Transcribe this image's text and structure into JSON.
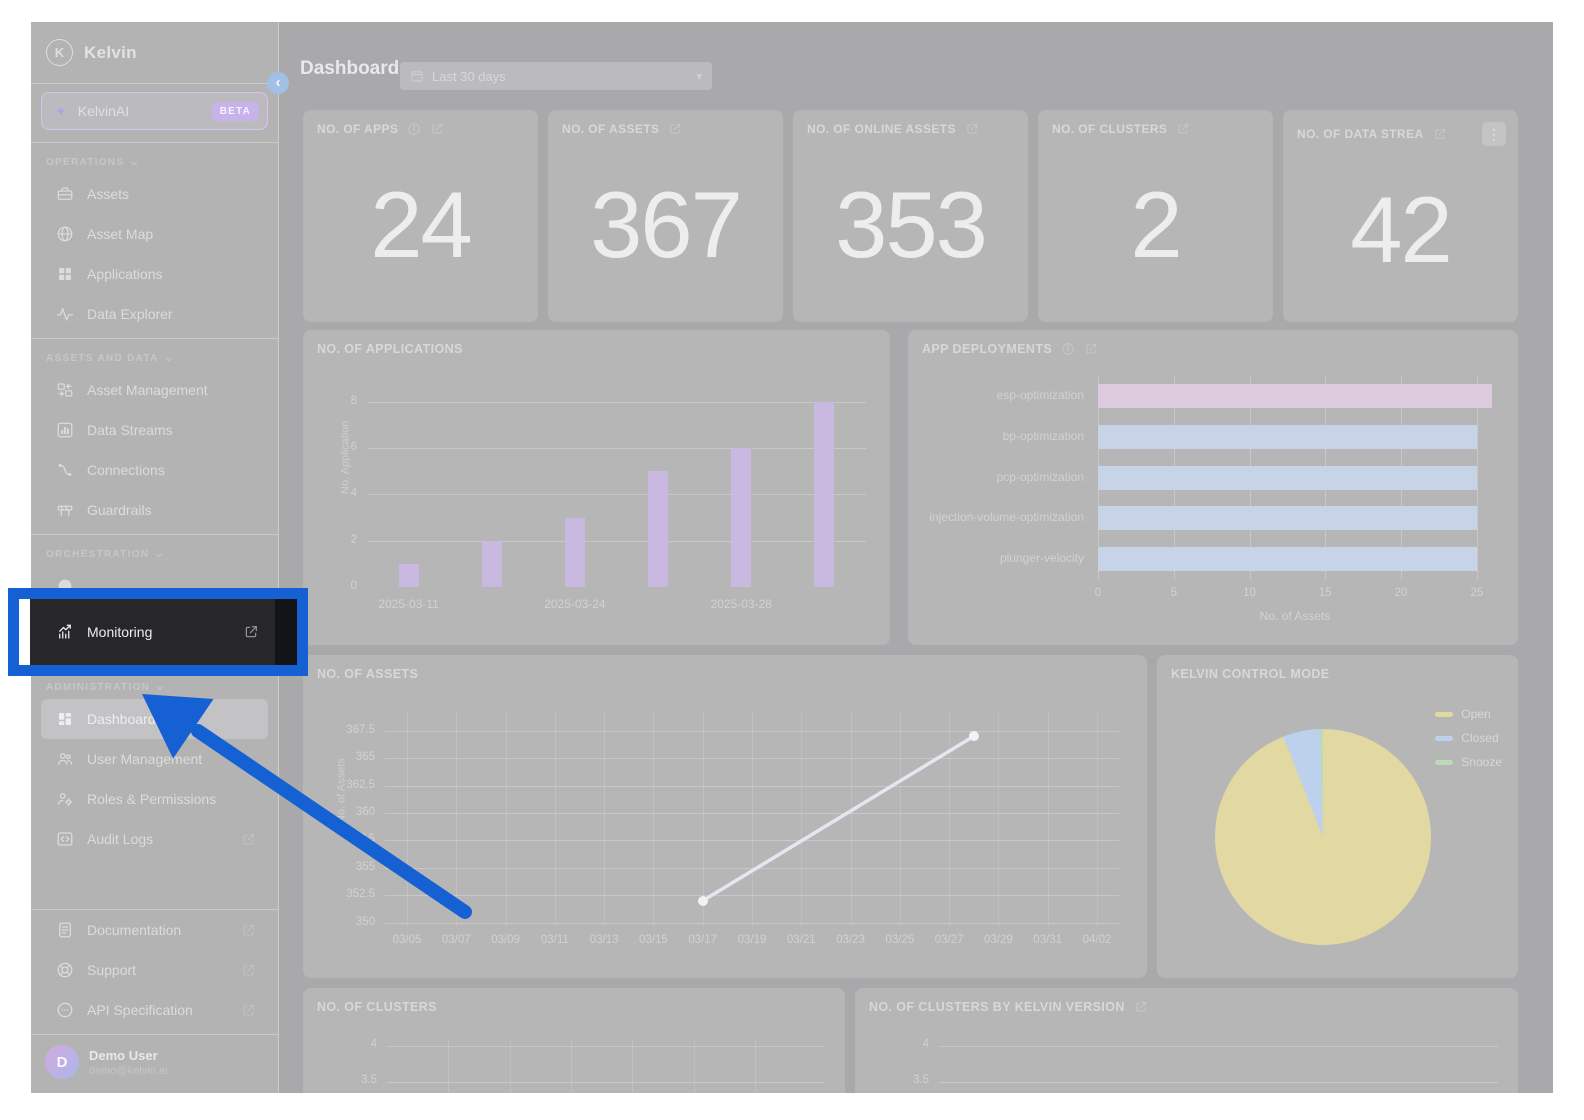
{
  "annotation": {
    "color": "#1560d2",
    "highlight": {
      "label": "Monitoring"
    }
  },
  "sidebar": {
    "logo_text": "Kelvin",
    "kelvinai": {
      "label": "KelvinAI",
      "badge": "BETA"
    },
    "sections": [
      {
        "label": "OPERATIONS",
        "items": [
          {
            "label": "Assets",
            "icon": "assets"
          },
          {
            "label": "Asset Map",
            "icon": "asset-map"
          },
          {
            "label": "Applications",
            "icon": "applications"
          },
          {
            "label": "Data Explorer",
            "icon": "data-explorer"
          }
        ]
      },
      {
        "label": "ASSETS AND DATA",
        "items": [
          {
            "label": "Asset Management",
            "icon": "asset-management"
          },
          {
            "label": "Data Streams",
            "icon": "data-streams"
          },
          {
            "label": "Connections",
            "icon": "connections"
          },
          {
            "label": "Guardrails",
            "icon": "guardrails"
          }
        ]
      },
      {
        "label": "ORCHESTRATION",
        "items": [
          {
            "label": "",
            "icon": "circle",
            "hidden_by_annotation": true
          }
        ]
      },
      {
        "label": "ADMINISTRATION",
        "items": [
          {
            "label": "Dashboard",
            "icon": "dashboard",
            "active": true
          },
          {
            "label": "User Management",
            "icon": "user-management"
          },
          {
            "label": "Roles & Permissions",
            "icon": "roles-permissions"
          },
          {
            "label": "Audit Logs",
            "icon": "audit-logs",
            "external": true
          }
        ]
      }
    ],
    "footer_items": [
      {
        "label": "Documentation",
        "icon": "documentation",
        "external": true
      },
      {
        "label": "Support",
        "icon": "support",
        "external": true
      },
      {
        "label": "API Specification",
        "icon": "api-spec",
        "external": true
      }
    ],
    "user": {
      "name": "Demo User",
      "email": "demo@kelvin.ai",
      "initial": "D"
    }
  },
  "header": {
    "title": "Dashboard",
    "date_range": "Last 30 days"
  },
  "stat_cards": [
    {
      "title": "NO. OF APPS",
      "value": "24",
      "info": true,
      "external": true
    },
    {
      "title": "NO. OF ASSETS",
      "value": "367",
      "external": true
    },
    {
      "title": "NO. OF ONLINE ASSETS",
      "value": "353",
      "external": true
    },
    {
      "title": "NO. OF CLUSTERS",
      "value": "2",
      "external": true
    },
    {
      "title": "NO. OF DATA STREA",
      "value": "42",
      "external": true,
      "menu": true
    }
  ],
  "chart_data": [
    {
      "id": "applications",
      "type": "bar",
      "title": "NO. OF APPLICATIONS",
      "ylabel": "No. Application",
      "yticks": [
        0,
        2,
        4,
        6,
        8
      ],
      "ylim": [
        0,
        8.6
      ],
      "values": [
        1,
        2,
        3,
        5,
        6,
        8
      ],
      "x_labels": [
        {
          "index": 0,
          "label": "2025-03-11"
        },
        {
          "index": 2,
          "label": "2025-03-24"
        },
        {
          "index": 4,
          "label": "2025-03-28"
        }
      ],
      "bar_color": "#c9b8e0",
      "grid": true
    },
    {
      "id": "deployments",
      "type": "hbar",
      "title": "APP DEPLOYMENTS",
      "info": true,
      "external": true,
      "categories": [
        "esp-optimization",
        "bp-optimization",
        "pcp-optimization",
        "injection-volume-optimization",
        "plunger-velocity"
      ],
      "values": [
        26,
        25,
        25,
        25,
        25
      ],
      "colors": [
        "#dccadd",
        "#c7d3e6",
        "#c7d3e6",
        "#c7d3e6",
        "#c7d3e6"
      ],
      "xticks": [
        0,
        5,
        10,
        15,
        20,
        25
      ],
      "xlim": [
        0,
        26
      ],
      "xlabel": "No. of Assets",
      "grid": true
    },
    {
      "id": "assets-trend",
      "type": "line",
      "title": "NO. OF ASSETS",
      "ylabel": "No. of Assets",
      "yticks": [
        367.5,
        365,
        362.5,
        360,
        357.5,
        355,
        352.5,
        350
      ],
      "ylim": [
        349.7,
        369.3
      ],
      "x_ticks": [
        "03/05",
        "03/07",
        "03/09",
        "03/11",
        "03/13",
        "03/15",
        "03/17",
        "03/19",
        "03/21",
        "03/23",
        "03/25",
        "03/27",
        "03/29",
        "03/31",
        "04/02"
      ],
      "points": [
        {
          "x_index": 6,
          "y": 352
        },
        {
          "x_index": 11.5,
          "y": 367
        }
      ],
      "line_color": "#e9e4f0",
      "grid": true
    },
    {
      "id": "control-mode",
      "type": "pie",
      "title": "KELVIN CONTROL MODE",
      "slices": [
        {
          "label": "Open",
          "value": 94,
          "color": "#e2d8a2"
        },
        {
          "label": "Closed",
          "value": 5.5,
          "color": "#bed1ec"
        },
        {
          "label": "Snooze",
          "value": 0.5,
          "color": "#bcd9ba"
        }
      ],
      "legend_position": "top-right"
    },
    {
      "id": "clusters",
      "type": "line",
      "title": "NO. OF CLUSTERS",
      "yticks": [
        4,
        3.5
      ],
      "clipped": true,
      "grid": true
    },
    {
      "id": "clusters-by-version",
      "type": "line",
      "title": "NO. OF CLUSTERS BY KELVIN VERSION",
      "external": true,
      "yticks": [
        4,
        3.5
      ],
      "clipped": true,
      "grid": true
    }
  ]
}
